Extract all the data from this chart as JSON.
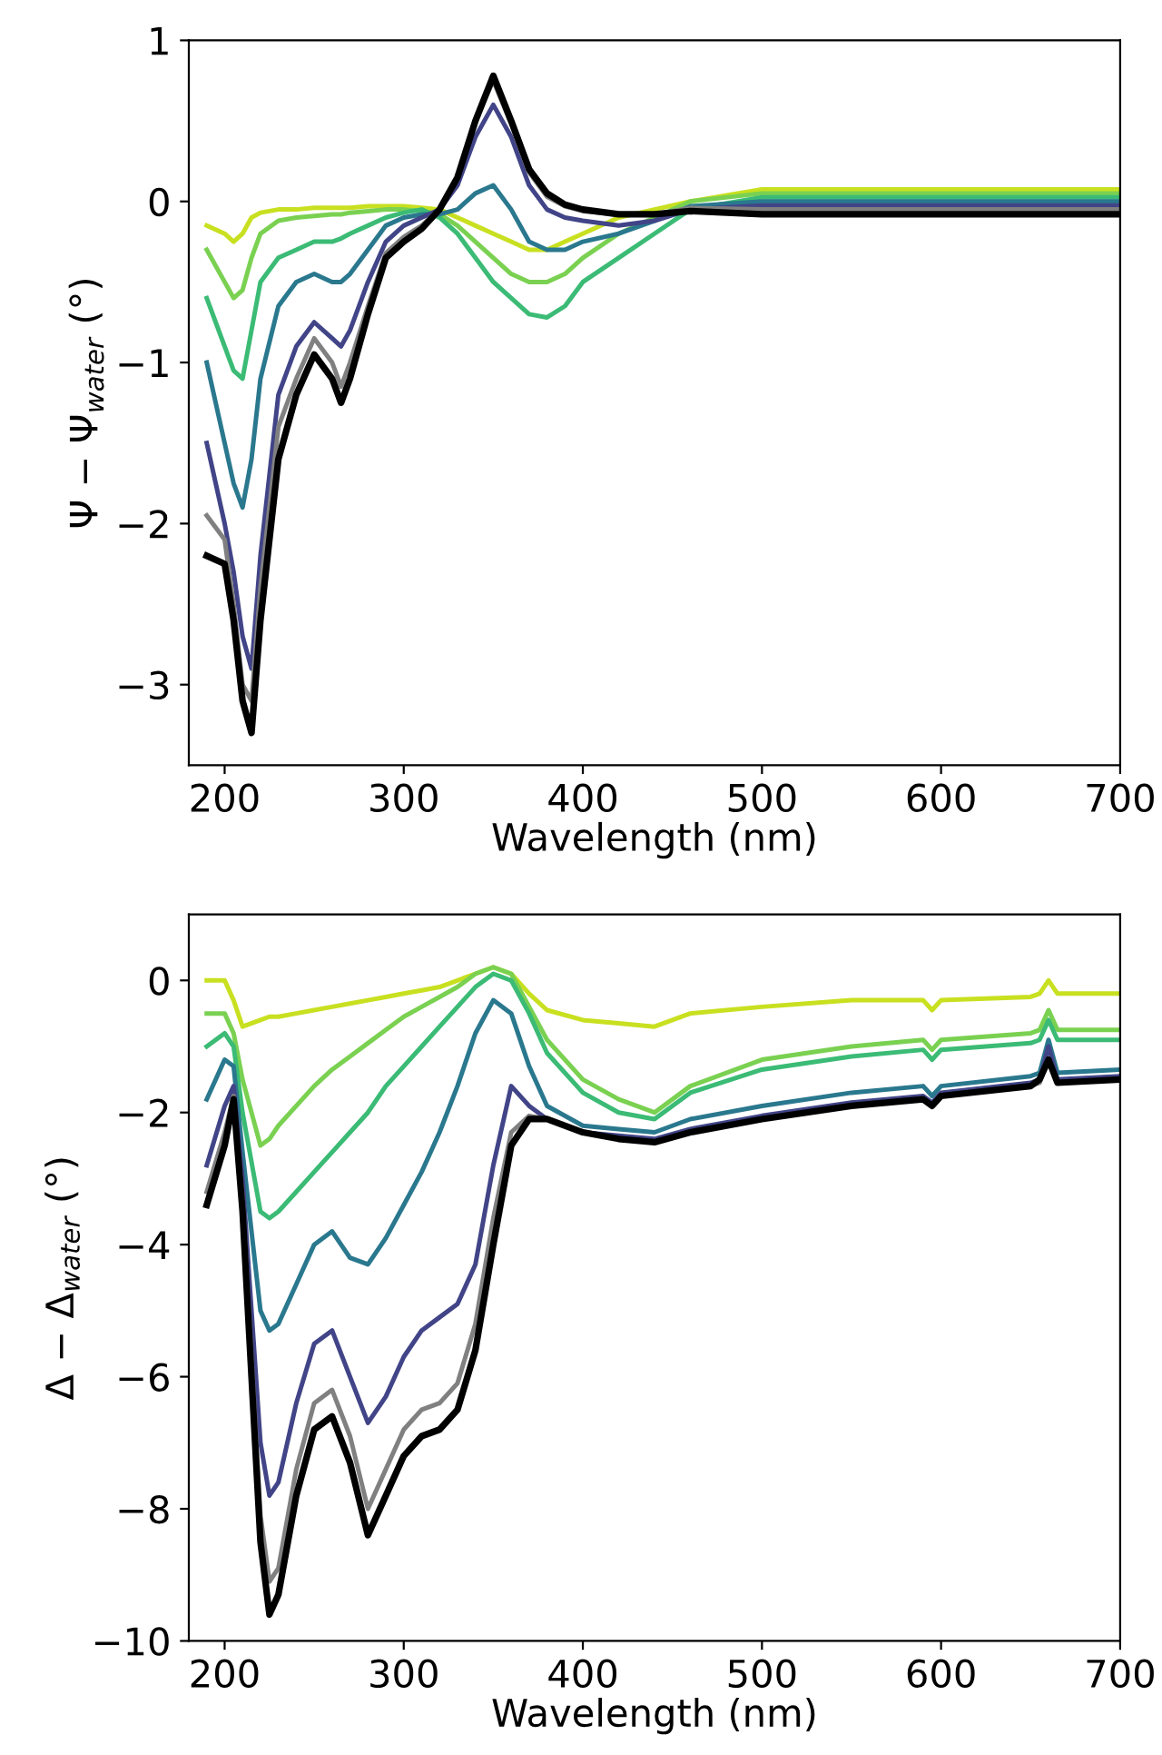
{
  "chart_data": [
    {
      "type": "line",
      "xlabel": "Wavelength (nm)",
      "ylabel": "Ψ − Ψ$_{water}$ (°)",
      "x": [
        190,
        200,
        205,
        210,
        215,
        220,
        230,
        240,
        250,
        260,
        265,
        270,
        280,
        290,
        300,
        310,
        320,
        330,
        340,
        350,
        360,
        370,
        380,
        390,
        400,
        420,
        440,
        460,
        500,
        550,
        600,
        650,
        700
      ],
      "xlim": [
        180,
        700
      ],
      "xticks": [
        200,
        300,
        400,
        500,
        600,
        700
      ],
      "ylim": [
        -3.5,
        1
      ],
      "yticks": [
        -3,
        -2,
        -1,
        0,
        1
      ],
      "grid": false,
      "legend": false,
      "series": [
        {
          "color": "#c8e020",
          "values": [
            -0.15,
            -0.2,
            -0.25,
            -0.2,
            -0.1,
            -0.07,
            -0.05,
            -0.05,
            -0.04,
            -0.04,
            -0.04,
            -0.04,
            -0.03,
            -0.03,
            -0.03,
            -0.04,
            -0.05,
            -0.1,
            -0.15,
            -0.2,
            -0.25,
            -0.3,
            -0.3,
            -0.25,
            -0.2,
            -0.1,
            -0.05,
            0.0,
            0.075,
            0.075,
            0.075,
            0.075,
            0.075
          ]
        },
        {
          "color": "#7ad151",
          "values": [
            -0.3,
            -0.5,
            -0.6,
            -0.55,
            -0.35,
            -0.2,
            -0.12,
            -0.1,
            -0.09,
            -0.08,
            -0.08,
            -0.07,
            -0.06,
            -0.05,
            -0.05,
            -0.06,
            -0.08,
            -0.15,
            -0.25,
            -0.35,
            -0.45,
            -0.5,
            -0.5,
            -0.45,
            -0.35,
            -0.2,
            -0.1,
            0.0,
            0.05,
            0.05,
            0.05,
            0.05,
            0.05
          ]
        },
        {
          "color": "#3bbb75",
          "values": [
            -0.6,
            -0.9,
            -1.05,
            -1.1,
            -0.8,
            -0.5,
            -0.35,
            -0.3,
            -0.25,
            -0.25,
            -0.23,
            -0.2,
            -0.15,
            -0.1,
            -0.07,
            -0.05,
            -0.1,
            -0.2,
            -0.35,
            -0.5,
            -0.6,
            -0.7,
            -0.72,
            -0.65,
            -0.5,
            -0.35,
            -0.2,
            -0.05,
            0.025,
            0.025,
            0.025,
            0.025,
            0.025
          ]
        },
        {
          "color": "#2a788e",
          "values": [
            -1.0,
            -1.5,
            -1.75,
            -1.9,
            -1.6,
            -1.1,
            -0.65,
            -0.5,
            -0.45,
            -0.5,
            -0.5,
            -0.45,
            -0.3,
            -0.15,
            -0.1,
            -0.08,
            -0.08,
            -0.05,
            0.05,
            0.1,
            -0.05,
            -0.25,
            -0.3,
            -0.3,
            -0.25,
            -0.2,
            -0.12,
            -0.03,
            0.0,
            0.0,
            0.0,
            0.0,
            0.0
          ]
        },
        {
          "color": "#414487",
          "values": [
            -1.5,
            -2.0,
            -2.3,
            -2.7,
            -2.9,
            -2.2,
            -1.2,
            -0.9,
            -0.75,
            -0.85,
            -0.9,
            -0.8,
            -0.5,
            -0.25,
            -0.15,
            -0.1,
            -0.05,
            0.1,
            0.4,
            0.6,
            0.4,
            0.1,
            -0.05,
            -0.1,
            -0.12,
            -0.15,
            -0.12,
            -0.05,
            -0.025,
            -0.025,
            -0.025,
            -0.025,
            -0.025
          ]
        },
        {
          "color": "#808080",
          "values": [
            -1.95,
            -2.1,
            -2.5,
            -3.0,
            -3.1,
            -2.4,
            -1.4,
            -1.1,
            -0.85,
            -1.0,
            -1.15,
            -1.0,
            -0.65,
            -0.32,
            -0.22,
            -0.15,
            -0.05,
            0.15,
            0.5,
            0.75,
            0.48,
            0.18,
            0.03,
            -0.03,
            -0.06,
            -0.08,
            -0.08,
            -0.04,
            -0.05,
            -0.05,
            -0.05,
            -0.05,
            -0.05
          ]
        },
        {
          "color": "#000000",
          "values": [
            -2.2,
            -2.25,
            -2.6,
            -3.1,
            -3.3,
            -2.6,
            -1.6,
            -1.2,
            -0.95,
            -1.1,
            -1.25,
            -1.1,
            -0.7,
            -0.35,
            -0.25,
            -0.17,
            -0.05,
            0.15,
            0.5,
            0.78,
            0.5,
            0.2,
            0.05,
            -0.02,
            -0.05,
            -0.08,
            -0.08,
            -0.06,
            -0.08,
            -0.08,
            -0.08,
            -0.08,
            -0.08
          ]
        }
      ]
    },
    {
      "type": "line",
      "xlabel": "Wavelength (nm)",
      "ylabel": "Δ − Δ$_{water}$ (°)",
      "x": [
        190,
        200,
        205,
        210,
        220,
        225,
        230,
        240,
        250,
        260,
        270,
        280,
        290,
        300,
        310,
        320,
        330,
        340,
        350,
        360,
        370,
        380,
        400,
        420,
        440,
        460,
        500,
        550,
        590,
        595,
        600,
        650,
        655,
        660,
        665,
        700
      ],
      "xlim": [
        180,
        700
      ],
      "xticks": [
        200,
        300,
        400,
        500,
        600,
        700
      ],
      "ylim": [
        -10,
        1
      ],
      "yticks": [
        -10,
        -8,
        -6,
        -4,
        -2,
        0
      ],
      "grid": false,
      "legend": false,
      "series": [
        {
          "color": "#c8e020",
          "values": [
            0.0,
            0.0,
            -0.3,
            -0.7,
            -0.6,
            -0.55,
            -0.55,
            -0.5,
            -0.45,
            -0.4,
            -0.35,
            -0.3,
            -0.25,
            -0.2,
            -0.15,
            -0.1,
            0.0,
            0.1,
            0.2,
            0.1,
            -0.2,
            -0.45,
            -0.6,
            -0.65,
            -0.7,
            -0.5,
            -0.4,
            -0.3,
            -0.3,
            -0.45,
            -0.3,
            -0.25,
            -0.2,
            0.0,
            -0.2,
            -0.2
          ]
        },
        {
          "color": "#7ad151",
          "values": [
            -0.5,
            -0.5,
            -0.8,
            -1.5,
            -2.5,
            -2.4,
            -2.2,
            -1.9,
            -1.6,
            -1.35,
            -1.15,
            -0.95,
            -0.75,
            -0.55,
            -0.4,
            -0.25,
            -0.1,
            0.1,
            0.2,
            0.1,
            -0.4,
            -0.9,
            -1.5,
            -1.8,
            -2.0,
            -1.6,
            -1.2,
            -1.0,
            -0.9,
            -1.05,
            -0.9,
            -0.8,
            -0.75,
            -0.45,
            -0.75,
            -0.75
          ]
        },
        {
          "color": "#3bbb75",
          "values": [
            -1.0,
            -0.8,
            -1.0,
            -2.0,
            -3.5,
            -3.6,
            -3.5,
            -3.2,
            -2.9,
            -2.6,
            -2.3,
            -2.0,
            -1.6,
            -1.3,
            -1.0,
            -0.7,
            -0.4,
            -0.1,
            0.1,
            0.0,
            -0.5,
            -1.1,
            -1.7,
            -2.0,
            -2.1,
            -1.7,
            -1.35,
            -1.15,
            -1.05,
            -1.2,
            -1.05,
            -0.95,
            -0.9,
            -0.6,
            -0.9,
            -0.9
          ]
        },
        {
          "color": "#2a788e",
          "values": [
            -1.8,
            -1.2,
            -1.3,
            -2.6,
            -5.0,
            -5.3,
            -5.2,
            -4.6,
            -4.0,
            -3.8,
            -4.2,
            -4.3,
            -3.9,
            -3.4,
            -2.9,
            -2.3,
            -1.6,
            -0.8,
            -0.3,
            -0.5,
            -1.3,
            -1.9,
            -2.2,
            -2.25,
            -2.3,
            -2.1,
            -1.9,
            -1.7,
            -1.6,
            -1.75,
            -1.6,
            -1.45,
            -1.4,
            -0.9,
            -1.4,
            -1.35
          ]
        },
        {
          "color": "#414487",
          "values": [
            -2.8,
            -1.9,
            -1.6,
            -3.0,
            -7.0,
            -7.8,
            -7.6,
            -6.4,
            -5.5,
            -5.3,
            -6.0,
            -6.7,
            -6.3,
            -5.7,
            -5.3,
            -5.1,
            -4.9,
            -4.3,
            -2.8,
            -1.6,
            -1.9,
            -2.1,
            -2.3,
            -2.35,
            -2.4,
            -2.25,
            -2.05,
            -1.85,
            -1.75,
            -1.85,
            -1.7,
            -1.55,
            -1.5,
            -1.0,
            -1.5,
            -1.45
          ]
        },
        {
          "color": "#808080",
          "values": [
            -3.2,
            -2.3,
            -1.75,
            -3.3,
            -8.1,
            -9.1,
            -8.9,
            -7.4,
            -6.4,
            -6.2,
            -6.9,
            -8.0,
            -7.4,
            -6.8,
            -6.5,
            -6.4,
            -6.1,
            -5.2,
            -3.6,
            -2.3,
            -2.05,
            -2.1,
            -2.3,
            -2.4,
            -2.45,
            -2.3,
            -2.1,
            -1.9,
            -1.8,
            -1.9,
            -1.75,
            -1.6,
            -1.55,
            -1.2,
            -1.55,
            -1.5
          ]
        },
        {
          "color": "#000000",
          "values": [
            -3.4,
            -2.5,
            -1.8,
            -3.5,
            -8.5,
            -9.6,
            -9.3,
            -7.8,
            -6.8,
            -6.6,
            -7.3,
            -8.4,
            -7.8,
            -7.2,
            -6.9,
            -6.8,
            -6.5,
            -5.6,
            -4.0,
            -2.5,
            -2.1,
            -2.1,
            -2.3,
            -2.4,
            -2.45,
            -2.3,
            -2.1,
            -1.9,
            -1.8,
            -1.9,
            -1.75,
            -1.6,
            -1.5,
            -1.2,
            -1.55,
            -1.5
          ]
        }
      ]
    }
  ]
}
